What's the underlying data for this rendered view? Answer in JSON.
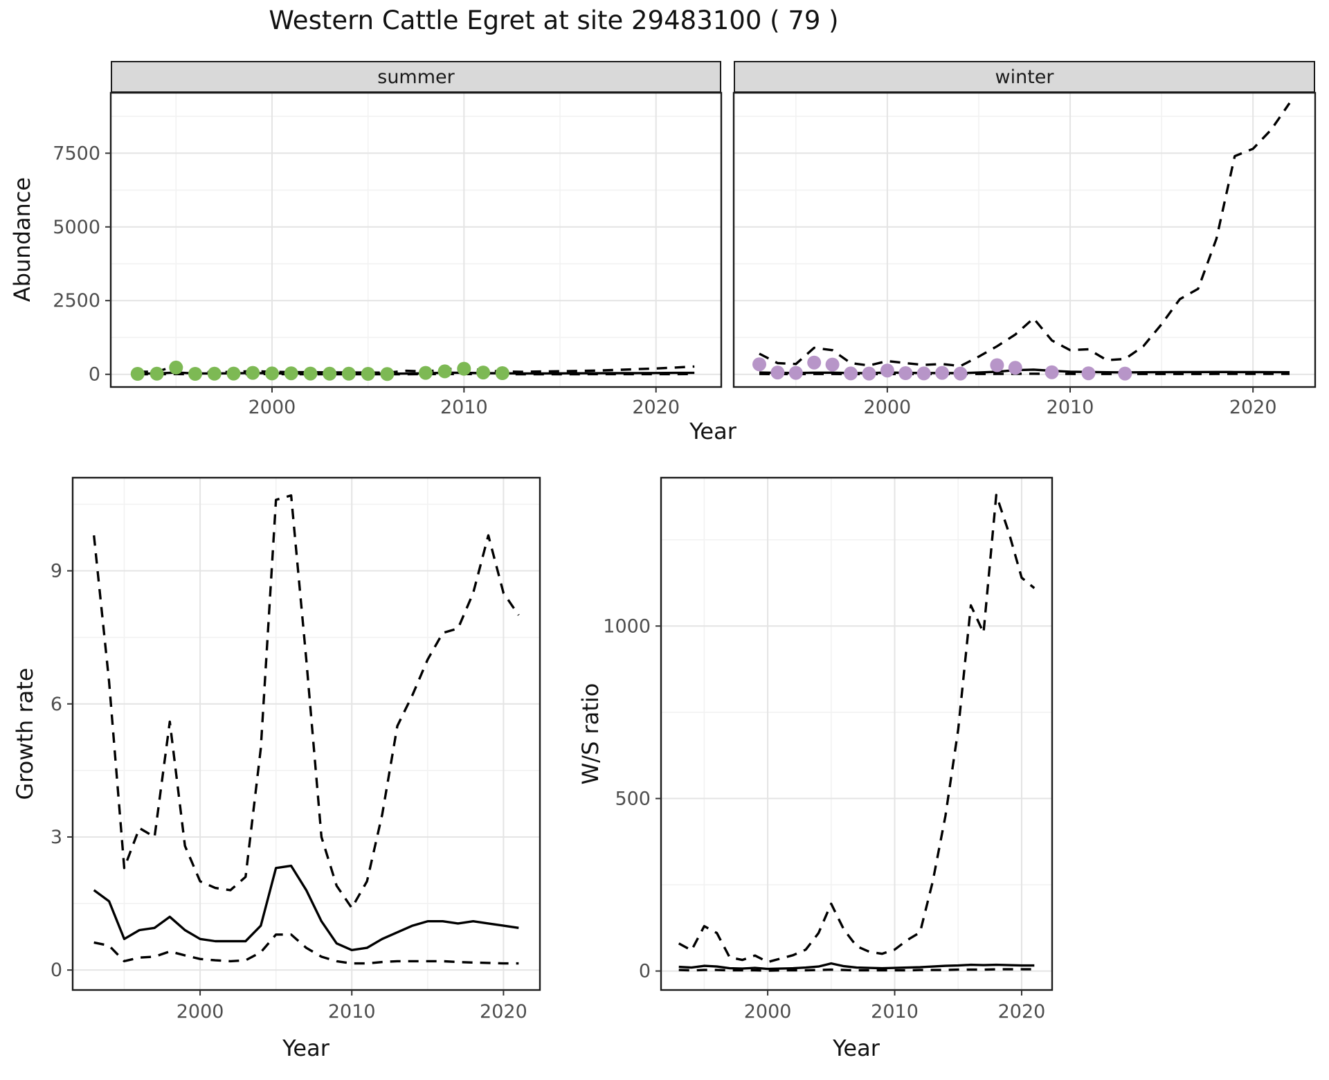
{
  "title": "Western Cattle Egret at site 29483100 ( 79 )",
  "colors": {
    "summer_points": "#7db954",
    "winter_points": "#b795c8",
    "line": "#000000",
    "strip_bg": "#d9d9d9",
    "grid_major": "#e4e4e4",
    "grid_minor": "#f2f2f2"
  },
  "chart_data": [
    {
      "id": "abundance-summer",
      "type": "line",
      "facet_label": "summer",
      "xlabel": "Year",
      "ylabel": "Abundance",
      "xlim": [
        1991.6,
        2023.4
      ],
      "ylim": [
        -430,
        9550
      ],
      "xticks": [
        2000,
        2010,
        2020
      ],
      "xtick_labels": [
        "2000",
        "2010",
        "2020"
      ],
      "xticks_minor": [
        1995,
        2005,
        2015
      ],
      "yticks": [
        0,
        2500,
        5000,
        7500
      ],
      "ytick_labels": [
        "0",
        "2500",
        "5000",
        "7500"
      ],
      "yticks_minor": [
        1250,
        3750,
        6250,
        8750
      ],
      "series": [
        {
          "name": "observed",
          "type": "scatter",
          "color": "#7db954",
          "x": [
            1993,
            1994,
            1995,
            1996,
            1997,
            1998,
            1999,
            2000,
            2001,
            2002,
            2003,
            2004,
            2005,
            2006,
            2008,
            2009,
            2010,
            2011,
            2012
          ],
          "y": [
            15,
            20,
            230,
            15,
            20,
            25,
            50,
            30,
            35,
            25,
            20,
            20,
            15,
            10,
            50,
            100,
            190,
            60,
            40
          ]
        },
        {
          "name": "predicted_median",
          "type": "line",
          "style": "solid",
          "color": "#000000",
          "x": [
            1993,
            1994,
            1995,
            1996,
            1997,
            1998,
            1999,
            2000,
            2001,
            2002,
            2003,
            2004,
            2005,
            2006,
            2007,
            2008,
            2009,
            2010,
            2011,
            2012,
            2013,
            2014,
            2015,
            2016,
            2017,
            2018,
            2019,
            2020,
            2021,
            2022
          ],
          "y": [
            25,
            30,
            60,
            30,
            30,
            35,
            45,
            35,
            30,
            30,
            25,
            25,
            20,
            20,
            25,
            35,
            55,
            50,
            40,
            35,
            30,
            30,
            32,
            35,
            38,
            40,
            42,
            45,
            48,
            50
          ]
        },
        {
          "name": "upper_ci",
          "type": "line",
          "style": "dashed",
          "color": "#000000",
          "x": [
            1993,
            1994,
            1995,
            1996,
            1997,
            1998,
            1999,
            2000,
            2001,
            2002,
            2003,
            2004,
            2005,
            2006,
            2007,
            2008,
            2009,
            2010,
            2011,
            2012,
            2013,
            2014,
            2015,
            2016,
            2017,
            2018,
            2019,
            2020,
            2021,
            2022
          ],
          "y": [
            90,
            85,
            300,
            75,
            75,
            85,
            110,
            85,
            75,
            72,
            65,
            62,
            58,
            55,
            120,
            95,
            160,
            230,
            130,
            95,
            85,
            95,
            105,
            115,
            130,
            150,
            175,
            200,
            230,
            265
          ]
        },
        {
          "name": "lower_ci",
          "type": "line",
          "style": "dashed",
          "color": "#000000",
          "x": [
            1993,
            1994,
            1995,
            1996,
            1997,
            1998,
            1999,
            2000,
            2001,
            2002,
            2003,
            2004,
            2005,
            2006,
            2007,
            2008,
            2009,
            2010,
            2011,
            2012,
            2013,
            2014,
            2015,
            2016,
            2017,
            2018,
            2019,
            2020,
            2021,
            2022
          ],
          "y": [
            5,
            5,
            10,
            5,
            5,
            5,
            8,
            6,
            5,
            5,
            5,
            5,
            4,
            4,
            5,
            6,
            8,
            8,
            6,
            5,
            5,
            5,
            5,
            5,
            6,
            6,
            6,
            7,
            7,
            8
          ]
        }
      ]
    },
    {
      "id": "abundance-winter",
      "type": "line",
      "facet_label": "winter",
      "xlabel": "Year",
      "ylabel": "Abundance",
      "xlim": [
        1991.6,
        2023.4
      ],
      "ylim": [
        -430,
        9550
      ],
      "xticks": [
        2000,
        2010,
        2020
      ],
      "xtick_labels": [
        "2000",
        "2010",
        "2020"
      ],
      "xticks_minor": [
        1995,
        2005,
        2015
      ],
      "yticks": [
        0,
        2500,
        5000,
        7500
      ],
      "ytick_labels": [
        "0",
        "2500",
        "5000",
        "7500"
      ],
      "yticks_minor": [
        1250,
        3750,
        6250,
        8750
      ],
      "series": [
        {
          "name": "observed",
          "type": "scatter",
          "color": "#b795c8",
          "x": [
            1993,
            1994,
            1995,
            1996,
            1997,
            1998,
            1999,
            2000,
            2001,
            2002,
            2003,
            2004,
            2006,
            2007,
            2009,
            2011,
            2013
          ],
          "y": [
            340,
            60,
            50,
            400,
            330,
            30,
            25,
            130,
            40,
            30,
            50,
            25,
            310,
            220,
            70,
            35,
            25
          ]
        },
        {
          "name": "predicted_median",
          "type": "line",
          "style": "solid",
          "color": "#000000",
          "x": [
            1993,
            1994,
            1995,
            1996,
            1997,
            1998,
            1999,
            2000,
            2001,
            2002,
            2003,
            2004,
            2005,
            2006,
            2007,
            2008,
            2009,
            2010,
            2011,
            2012,
            2013,
            2014,
            2015,
            2016,
            2017,
            2018,
            2019,
            2020,
            2021,
            2022
          ],
          "y": [
            60,
            50,
            45,
            55,
            55,
            45,
            40,
            60,
            50,
            45,
            45,
            40,
            60,
            90,
            140,
            160,
            120,
            90,
            80,
            70,
            65,
            70,
            72,
            75,
            78,
            80,
            78,
            75,
            72,
            70
          ]
        },
        {
          "name": "upper_ci",
          "type": "line",
          "style": "dashed",
          "color": "#000000",
          "x": [
            1993,
            1994,
            1995,
            1996,
            1997,
            1998,
            1999,
            2000,
            2001,
            2002,
            2003,
            2004,
            2005,
            2006,
            2007,
            2008,
            2009,
            2010,
            2011,
            2012,
            2013,
            2014,
            2015,
            2016,
            2017,
            2018,
            2019,
            2020,
            2021,
            2022
          ],
          "y": [
            700,
            380,
            350,
            900,
            820,
            380,
            300,
            450,
            380,
            320,
            350,
            280,
            600,
            950,
            1350,
            1900,
            1150,
            820,
            850,
            480,
            520,
            950,
            1700,
            2550,
            2900,
            4600,
            7400,
            7650,
            8300,
            9200
          ]
        },
        {
          "name": "lower_ci",
          "type": "line",
          "style": "dashed",
          "color": "#000000",
          "x": [
            1993,
            1994,
            1995,
            1996,
            1997,
            1998,
            1999,
            2000,
            2001,
            2002,
            2003,
            2004,
            2005,
            2006,
            2007,
            2008,
            2009,
            2010,
            2011,
            2012,
            2013,
            2014,
            2015,
            2016,
            2017,
            2018,
            2019,
            2020,
            2021,
            2022
          ],
          "y": [
            12,
            10,
            9,
            12,
            12,
            9,
            8,
            11,
            10,
            9,
            9,
            8,
            11,
            14,
            18,
            20,
            16,
            13,
            12,
            11,
            10,
            11,
            11,
            12,
            12,
            13,
            13,
            13,
            13,
            13
          ]
        }
      ]
    },
    {
      "id": "growth-rate",
      "type": "line",
      "facet_label": "",
      "xlabel": "Year",
      "ylabel": "Growth rate",
      "xlim": [
        1991.6,
        2022.4
      ],
      "ylim": [
        -0.45,
        11.1
      ],
      "xticks": [
        2000,
        2010,
        2020
      ],
      "xtick_labels": [
        "2000",
        "2010",
        "2020"
      ],
      "xticks_minor": [
        1995,
        2005,
        2015
      ],
      "yticks": [
        0,
        3,
        6,
        9
      ],
      "ytick_labels": [
        "0",
        "3",
        "6",
        "9"
      ],
      "yticks_minor": [
        1.5,
        4.5,
        7.5,
        10.5
      ],
      "series": [
        {
          "name": "predicted_median",
          "type": "line",
          "style": "solid",
          "color": "#000000",
          "x": [
            1993,
            1994,
            1995,
            1996,
            1997,
            1998,
            1999,
            2000,
            2001,
            2002,
            2003,
            2004,
            2005,
            2006,
            2007,
            2008,
            2009,
            2010,
            2011,
            2012,
            2013,
            2014,
            2015,
            2016,
            2017,
            2018,
            2019,
            2020,
            2021
          ],
          "y": [
            1.8,
            1.55,
            0.7,
            0.9,
            0.95,
            1.2,
            0.9,
            0.7,
            0.65,
            0.65,
            0.65,
            1.0,
            2.3,
            2.35,
            1.8,
            1.1,
            0.6,
            0.45,
            0.5,
            0.7,
            0.85,
            1.0,
            1.1,
            1.1,
            1.05,
            1.1,
            1.05,
            1.0,
            0.95
          ]
        },
        {
          "name": "upper_ci",
          "type": "line",
          "style": "dashed",
          "color": "#000000",
          "x": [
            1993,
            1994,
            1995,
            1996,
            1997,
            1998,
            1999,
            2000,
            2001,
            2002,
            2003,
            2004,
            2005,
            2006,
            2007,
            2008,
            2009,
            2010,
            2011,
            2012,
            2013,
            2014,
            2015,
            2016,
            2017,
            2018,
            2019,
            2020,
            2021
          ],
          "y": [
            9.8,
            6.5,
            2.3,
            3.2,
            3.0,
            5.6,
            2.8,
            2.0,
            1.85,
            1.8,
            2.1,
            5.0,
            10.6,
            10.7,
            7.0,
            3.0,
            1.9,
            1.4,
            2.0,
            3.5,
            5.5,
            6.2,
            7.0,
            7.6,
            7.7,
            8.5,
            9.8,
            8.5,
            8.0
          ]
        },
        {
          "name": "lower_ci",
          "type": "line",
          "style": "dashed",
          "color": "#000000",
          "x": [
            1993,
            1994,
            1995,
            1996,
            1997,
            1998,
            1999,
            2000,
            2001,
            2002,
            2003,
            2004,
            2005,
            2006,
            2007,
            2008,
            2009,
            2010,
            2011,
            2012,
            2013,
            2014,
            2015,
            2016,
            2017,
            2018,
            2019,
            2020,
            2021
          ],
          "y": [
            0.62,
            0.55,
            0.2,
            0.28,
            0.3,
            0.42,
            0.33,
            0.25,
            0.22,
            0.2,
            0.22,
            0.4,
            0.8,
            0.8,
            0.5,
            0.3,
            0.2,
            0.15,
            0.15,
            0.18,
            0.2,
            0.2,
            0.2,
            0.2,
            0.18,
            0.17,
            0.16,
            0.15,
            0.15
          ]
        }
      ]
    },
    {
      "id": "ws-ratio",
      "type": "line",
      "facet_label": "",
      "xlabel": "Year",
      "ylabel": "W/S ratio",
      "xlim": [
        1991.6,
        2022.4
      ],
      "ylim": [
        -55,
        1430
      ],
      "xticks": [
        2000,
        2010,
        2020
      ],
      "xtick_labels": [
        "2000",
        "2010",
        "2020"
      ],
      "xticks_minor": [
        1995,
        2005,
        2015
      ],
      "yticks": [
        0,
        500,
        1000
      ],
      "ytick_labels": [
        "0",
        "500",
        "1000"
      ],
      "yticks_minor": [
        250,
        750,
        1250
      ],
      "series": [
        {
          "name": "predicted_median",
          "type": "line",
          "style": "solid",
          "color": "#000000",
          "x": [
            1993,
            1994,
            1995,
            1996,
            1997,
            1998,
            1999,
            2000,
            2001,
            2002,
            2003,
            2004,
            2005,
            2006,
            2007,
            2008,
            2009,
            2010,
            2011,
            2012,
            2013,
            2014,
            2015,
            2016,
            2017,
            2018,
            2019,
            2020,
            2021
          ],
          "y": [
            12,
            10,
            15,
            13,
            8,
            7,
            9,
            6,
            7,
            8,
            10,
            13,
            22,
            14,
            10,
            9,
            8,
            9,
            10,
            11,
            13,
            15,
            16,
            18,
            17,
            18,
            17,
            16,
            16
          ]
        },
        {
          "name": "upper_ci",
          "type": "line",
          "style": "dashed",
          "color": "#000000",
          "x": [
            1993,
            1994,
            1995,
            1996,
            1997,
            1998,
            1999,
            2000,
            2001,
            2002,
            2003,
            2004,
            2005,
            2006,
            2007,
            2008,
            2009,
            2010,
            2011,
            2012,
            2013,
            2014,
            2015,
            2016,
            2017,
            2018,
            2019,
            2020,
            2021
          ],
          "y": [
            80,
            60,
            130,
            110,
            40,
            32,
            45,
            26,
            36,
            46,
            62,
            110,
            195,
            120,
            72,
            56,
            50,
            62,
            90,
            112,
            260,
            450,
            700,
            1060,
            980,
            1380,
            1270,
            1140,
            1110
          ]
        },
        {
          "name": "lower_ci",
          "type": "line",
          "style": "dashed",
          "color": "#000000",
          "x": [
            1993,
            1994,
            1995,
            1996,
            1997,
            1998,
            1999,
            2000,
            2001,
            2002,
            2003,
            2004,
            2005,
            2006,
            2007,
            2008,
            2009,
            2010,
            2011,
            2012,
            2013,
            2014,
            2015,
            2016,
            2017,
            2018,
            2019,
            2020,
            2021
          ],
          "y": [
            3,
            2,
            3,
            3,
            2,
            2,
            2,
            1,
            2,
            2,
            2,
            3,
            4,
            3,
            2,
            2,
            2,
            2,
            2,
            3,
            3,
            3,
            4,
            4,
            4,
            5,
            5,
            5,
            5
          ]
        }
      ]
    }
  ]
}
